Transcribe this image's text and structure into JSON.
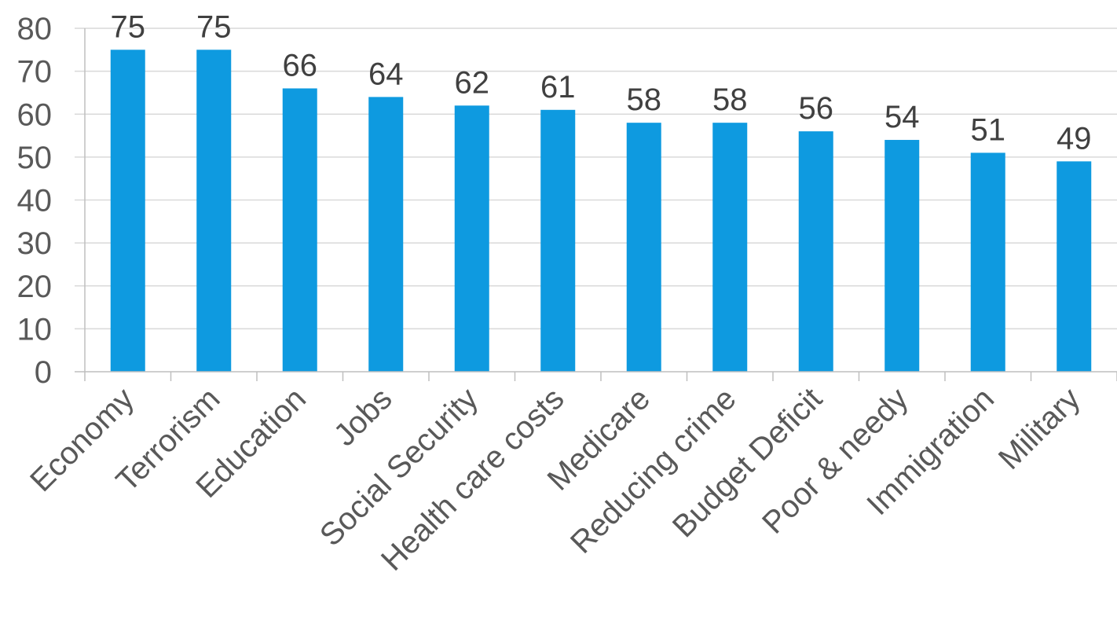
{
  "chart_data": {
    "type": "bar",
    "categories": [
      "Economy",
      "Terrorism",
      "Education",
      "Jobs",
      "Social Security",
      "Health care costs",
      "Medicare",
      "Reducing crime",
      "Budget Deficit",
      "Poor & needy",
      "Immigration",
      "Military"
    ],
    "values": [
      75,
      75,
      66,
      64,
      62,
      61,
      58,
      58,
      56,
      54,
      51,
      49
    ],
    "data_labels": [
      "75",
      "75",
      "66",
      "64",
      "62",
      "61",
      "58",
      "58",
      "56",
      "54",
      "51",
      "49"
    ],
    "y_ticks": [
      0,
      10,
      20,
      30,
      40,
      50,
      60,
      70,
      80
    ],
    "ylim": [
      0,
      80
    ],
    "grid": true,
    "legend": "none",
    "bar_color": "#0E9AE0",
    "grid_color": "#D9D9D9",
    "axis_color": "#BFBFBF"
  }
}
